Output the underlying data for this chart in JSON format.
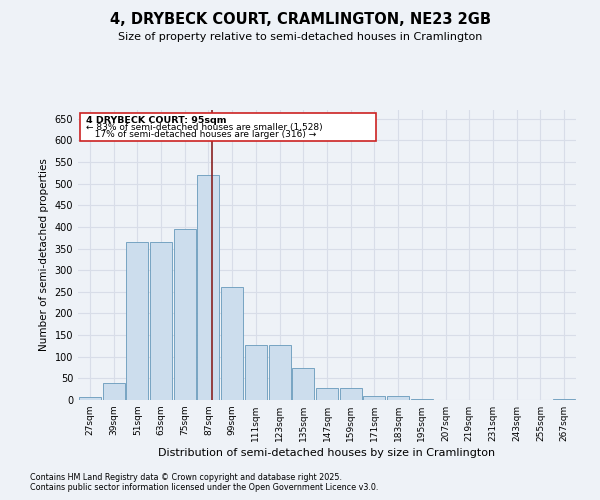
{
  "title": "4, DRYBECK COURT, CRAMLINGTON, NE23 2GB",
  "subtitle": "Size of property relative to semi-detached houses in Cramlington",
  "xlabel": "Distribution of semi-detached houses by size in Cramlington",
  "ylabel": "Number of semi-detached properties",
  "bins": [
    27,
    39,
    51,
    63,
    75,
    87,
    99,
    111,
    123,
    135,
    147,
    159,
    171,
    183,
    195,
    207,
    219,
    231,
    243,
    255,
    267
  ],
  "values": [
    7,
    40,
    365,
    365,
    395,
    520,
    260,
    128,
    128,
    75,
    28,
    28,
    10,
    10,
    3,
    0,
    0,
    0,
    0,
    0,
    2
  ],
  "bar_color": "#ccdded",
  "bar_edge_color": "#6699bb",
  "vline_color": "#882222",
  "vline_x": 95,
  "box_edge_color": "#cc2222",
  "background_color": "#eef2f7",
  "grid_color": "#d8dde8",
  "ylim": [
    0,
    670
  ],
  "yticks": [
    0,
    50,
    100,
    150,
    200,
    250,
    300,
    350,
    400,
    450,
    500,
    550,
    600,
    650
  ],
  "footer1": "Contains HM Land Registry data © Crown copyright and database right 2025.",
  "footer2": "Contains public sector information licensed under the Open Government Licence v3.0."
}
